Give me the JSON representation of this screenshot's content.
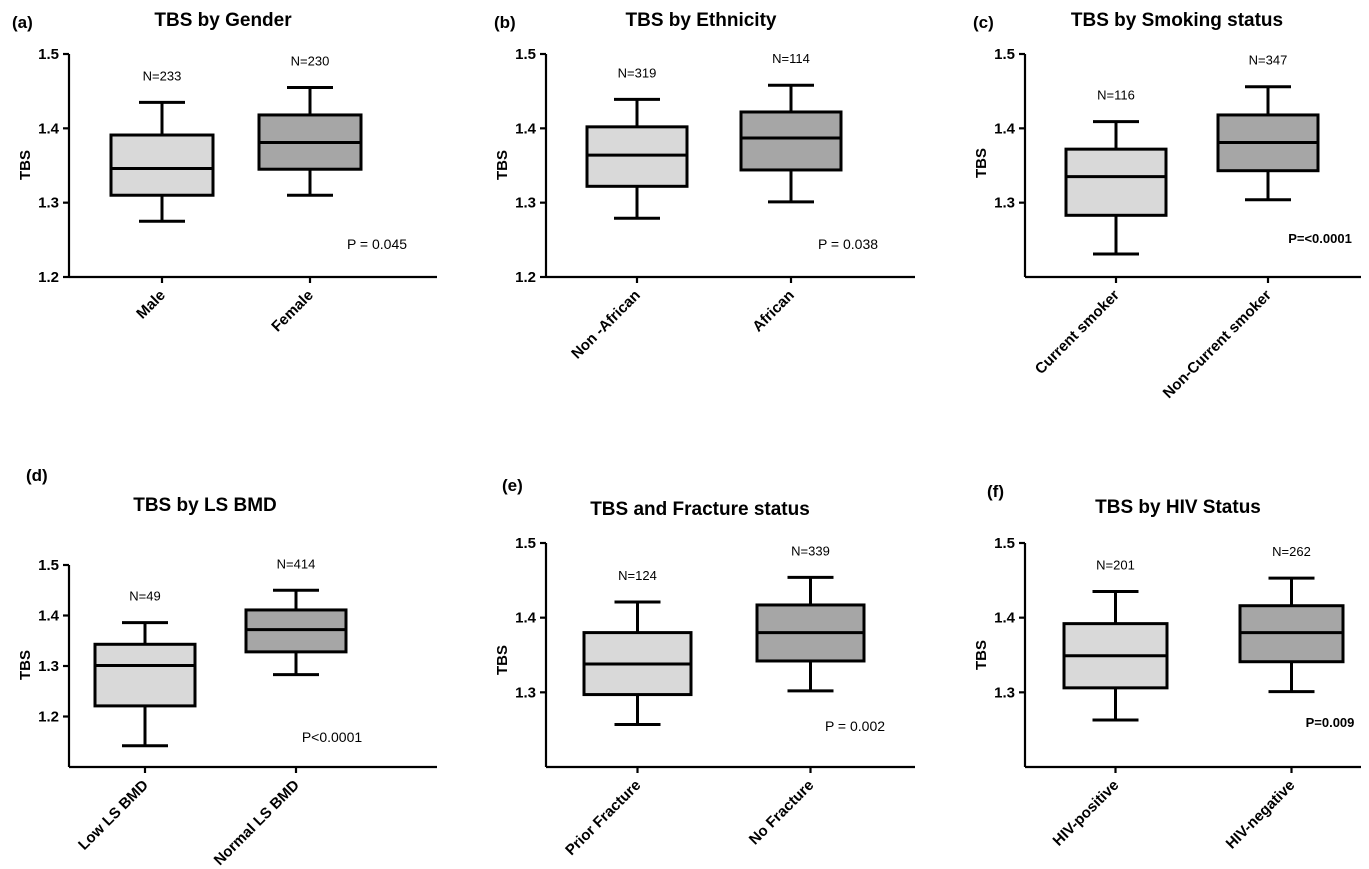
{
  "colors": {
    "box_light": "#d9d9d9",
    "box_dark": "#a6a6a6",
    "stroke": "#000000"
  },
  "chart_data": [
    {
      "type": "box",
      "panel": "(a)",
      "title": "TBS by Gender",
      "ylabel": "TBS",
      "ylim": [
        1.2,
        1.5
      ],
      "yticks": [
        "1.2",
        "1.3",
        "1.4",
        "1.5"
      ],
      "categories": [
        "Male",
        "Female"
      ],
      "boxes": [
        {
          "label": "Male",
          "n": "N=233",
          "min": 1.275,
          "q1": 1.31,
          "median": 1.346,
          "q3": 1.391,
          "max": 1.435,
          "color": "#d9d9d9"
        },
        {
          "label": "Female",
          "n": "N=230",
          "min": 1.31,
          "q1": 1.345,
          "median": 1.381,
          "q3": 1.418,
          "max": 1.455,
          "color": "#a6a6a6"
        }
      ],
      "p_value": "P = 0.045"
    },
    {
      "type": "box",
      "panel": "(b)",
      "title": "TBS by Ethnicity",
      "ylabel": "TBS",
      "ylim": [
        1.2,
        1.5
      ],
      "yticks": [
        "1.2",
        "1.3",
        "1.4",
        "1.5"
      ],
      "categories": [
        "Non -African",
        "African"
      ],
      "boxes": [
        {
          "label": "Non -African",
          "n": "N=319",
          "min": 1.279,
          "q1": 1.322,
          "median": 1.364,
          "q3": 1.402,
          "max": 1.439,
          "color": "#d9d9d9"
        },
        {
          "label": "African",
          "n": "N=114",
          "min": 1.301,
          "q1": 1.344,
          "median": 1.387,
          "q3": 1.422,
          "max": 1.458,
          "color": "#a6a6a6"
        }
      ],
      "p_value": "P = 0.038"
    },
    {
      "type": "box",
      "panel": "(c)",
      "title": "TBS by Smoking status",
      "ylabel": "TBS",
      "ylim": [
        1.2,
        1.5
      ],
      "yticks": [
        "1.3",
        "1.4",
        "1.5"
      ],
      "categories": [
        "Current smoker",
        "Non-Current smoker"
      ],
      "boxes": [
        {
          "label": "Current smoker",
          "n": "N=116",
          "min": 1.231,
          "q1": 1.283,
          "median": 1.335,
          "q3": 1.372,
          "max": 1.409,
          "color": "#d9d9d9"
        },
        {
          "label": "Non-Current smoker",
          "n": "N=347",
          "min": 1.304,
          "q1": 1.343,
          "median": 1.381,
          "q3": 1.418,
          "max": 1.456,
          "color": "#a6a6a6"
        }
      ],
      "p_value": "P=<0.0001",
      "p_bold": true
    },
    {
      "type": "box",
      "panel": "(d)",
      "title": "TBS by LS BMD",
      "ylabel": "TBS",
      "ylim": [
        1.1,
        1.5
      ],
      "yticks": [
        "1.2",
        "1.3",
        "1.4",
        "1.5"
      ],
      "categories": [
        "Low LS BMD",
        "Normal LS BMD"
      ],
      "boxes": [
        {
          "label": "Low LS BMD",
          "n": "N=49",
          "min": 1.142,
          "q1": 1.221,
          "median": 1.301,
          "q3": 1.343,
          "max": 1.386,
          "color": "#d9d9d9"
        },
        {
          "label": "Normal LS BMD",
          "n": "N=414",
          "min": 1.283,
          "q1": 1.328,
          "median": 1.372,
          "q3": 1.411,
          "max": 1.45,
          "color": "#a6a6a6"
        }
      ],
      "p_value": "P<0.0001"
    },
    {
      "type": "box",
      "panel": "(e)",
      "title": "TBS and Fracture status",
      "ylabel": "TBS",
      "ylim": [
        1.2,
        1.5
      ],
      "yticks": [
        "1.3",
        "1.4",
        "1.5"
      ],
      "categories": [
        "Prior Fracture",
        "No Fracture"
      ],
      "boxes": [
        {
          "label": "Prior Fracture",
          "n": "N=124",
          "min": 1.257,
          "q1": 1.297,
          "median": 1.338,
          "q3": 1.38,
          "max": 1.421,
          "color": "#d9d9d9"
        },
        {
          "label": "No Fracture",
          "n": "N=339",
          "min": 1.302,
          "q1": 1.342,
          "median": 1.38,
          "q3": 1.417,
          "max": 1.454,
          "color": "#a6a6a6"
        }
      ],
      "p_value": "P = 0.002"
    },
    {
      "type": "box",
      "panel": "(f)",
      "title": "TBS by HIV Status",
      "ylabel": "TBS",
      "ylim": [
        1.2,
        1.5
      ],
      "yticks": [
        "1.3",
        "1.4",
        "1.5"
      ],
      "categories": [
        "HIV-positive",
        "HIV-negative"
      ],
      "boxes": [
        {
          "label": "HIV-positive",
          "n": "N=201",
          "min": 1.263,
          "q1": 1.306,
          "median": 1.349,
          "q3": 1.392,
          "max": 1.435,
          "color": "#d9d9d9"
        },
        {
          "label": "HIV-negative",
          "n": "N=262",
          "min": 1.301,
          "q1": 1.341,
          "median": 1.38,
          "q3": 1.416,
          "max": 1.453,
          "color": "#a6a6a6"
        }
      ],
      "p_value": "P=0.009",
      "p_bold": true,
      "p_italic_prefix": "P"
    }
  ]
}
